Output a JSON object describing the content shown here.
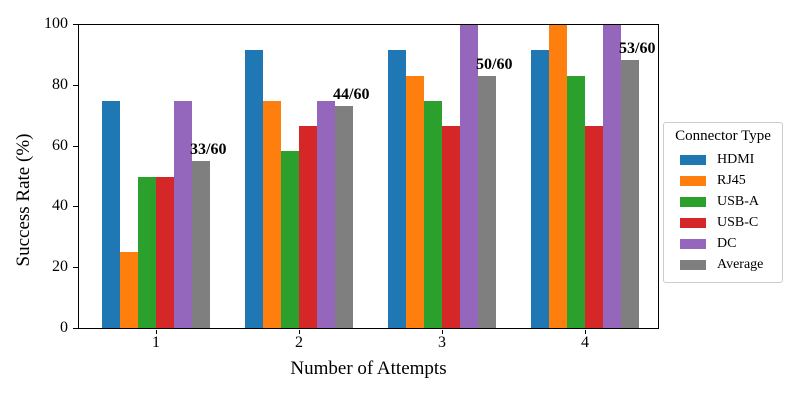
{
  "chart_data": {
    "type": "bar",
    "title": "",
    "xlabel": "Number of Attempts",
    "ylabel": "Success Rate (%)",
    "categories": [
      "1",
      "2",
      "3",
      "4"
    ],
    "series": [
      {
        "name": "HDMI",
        "color": "#1f77b4",
        "values": [
          75,
          91.67,
          91.67,
          91.67
        ]
      },
      {
        "name": "RJ45",
        "color": "#ff7f0e",
        "values": [
          25,
          75,
          83.33,
          100
        ]
      },
      {
        "name": "USB-A",
        "color": "#2ca02c",
        "values": [
          50,
          58.33,
          75,
          83.33
        ]
      },
      {
        "name": "USB-C",
        "color": "#d62728",
        "values": [
          50,
          66.67,
          66.67,
          66.67
        ]
      },
      {
        "name": "DC",
        "color": "#9467bd",
        "values": [
          75,
          75,
          100,
          100
        ]
      },
      {
        "name": "Average",
        "color": "#7f7f7f",
        "values": [
          55,
          73.33,
          83.33,
          88.33
        ]
      }
    ],
    "annotations": [
      {
        "text": "33/60",
        "category": "1",
        "value": 55
      },
      {
        "text": "44/60",
        "category": "2",
        "value": 73.33
      },
      {
        "text": "50/60",
        "category": "3",
        "value": 83.33
      },
      {
        "text": "53/60",
        "category": "4",
        "value": 88.33
      }
    ],
    "yticks": [
      0,
      20,
      40,
      60,
      80,
      100
    ],
    "ylim": [
      0,
      100
    ],
    "grid": false,
    "legend": {
      "title": "Connector Type",
      "position": "right-outside"
    },
    "colors": {
      "axis": "#000000",
      "legend_border": "#cccccc",
      "background": "#ffffff"
    }
  }
}
